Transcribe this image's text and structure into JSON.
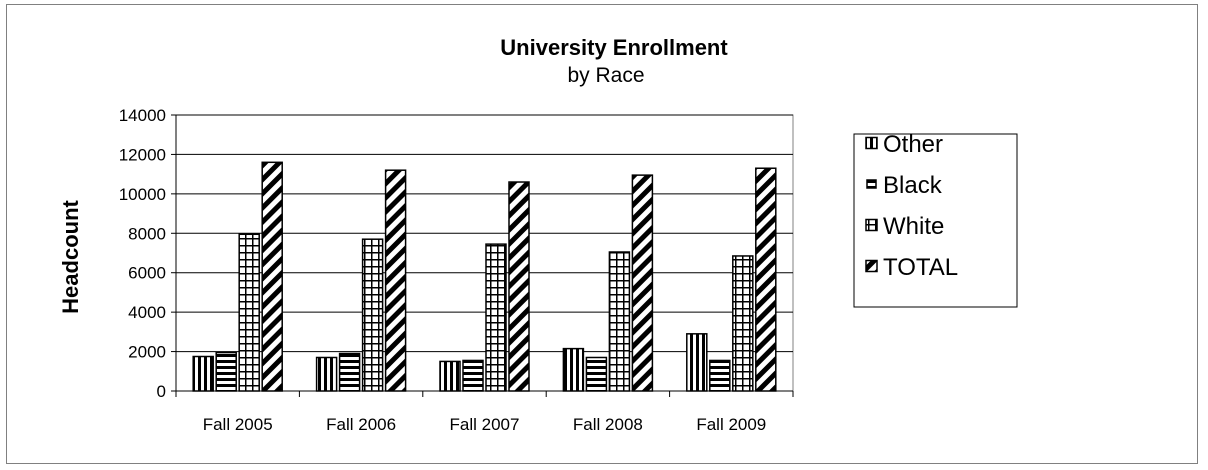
{
  "chart_data": {
    "type": "bar",
    "title": "University Enrollment",
    "subtitle": "by Race",
    "xlabel": "",
    "ylabel": "Headcount",
    "ylim": [
      0,
      14000
    ],
    "yticks": [
      "0",
      "2000",
      "4000",
      "6000",
      "8000",
      "10000",
      "12000",
      "14000"
    ],
    "grid": true,
    "legend_position": "right",
    "categories": [
      "Fall 2005",
      "Fall 2006",
      "Fall 2007",
      "Fall 2008",
      "Fall 2009"
    ],
    "series": [
      {
        "name": "Other",
        "values": [
          1750,
          1700,
          1500,
          2150,
          2900
        ],
        "pattern": "vertical-stripes"
      },
      {
        "name": "Black",
        "values": [
          1950,
          1900,
          1550,
          1700,
          1550
        ],
        "pattern": "horizontal-stripes"
      },
      {
        "name": "White",
        "values": [
          7950,
          7700,
          7450,
          7050,
          6850
        ],
        "pattern": "grid"
      },
      {
        "name": "TOTAL",
        "values": [
          11600,
          11200,
          10600,
          10950,
          11300
        ],
        "pattern": "diagonal-stripes"
      }
    ]
  }
}
